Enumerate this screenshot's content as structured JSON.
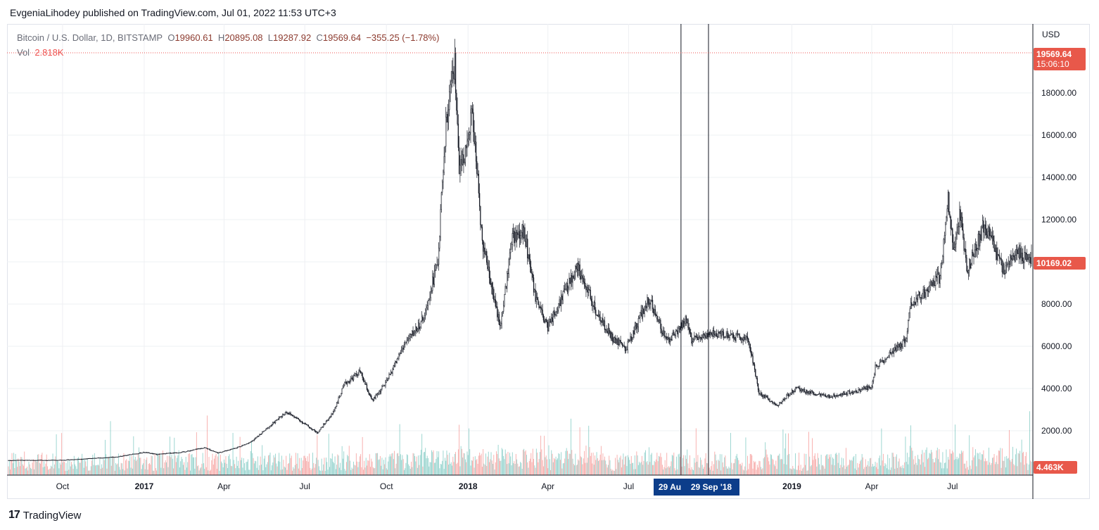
{
  "header": {
    "published": "EvgeniaLihodey published on TradingView.com, Jul 01, 2022 11:53 UTC+3"
  },
  "legend": {
    "symbol": "Bitcoin / U.S. Dollar, 1D, BITSTAMP",
    "open_label": "O",
    "open": "19960.61",
    "high_label": "H",
    "high": "20895.08",
    "low_label": "L",
    "low": "19287.92",
    "close_label": "C",
    "close": "19569.64",
    "change": "−355.25 (−1.78%)",
    "vol_label": "Vol",
    "vol_value": "2.818K"
  },
  "price_axis": {
    "currency": "USD",
    "last_price": "19569.64",
    "countdown": "15:06:10",
    "crosshair_price": "10169.02",
    "volume_tag": "4.463K",
    "tag_color": "#e8584a"
  },
  "time_axis": {
    "marker_a": "29 Au",
    "marker_b": "29 Sep '18",
    "marker_color": "#0c3d8a"
  },
  "footer": {
    "brand": "TradingView",
    "logo": "17"
  },
  "colors": {
    "up": "#26a69a",
    "down": "#ef5350",
    "candle": "#131722",
    "grid": "#eef0f3"
  },
  "chart_data": {
    "type": "candlestick",
    "symbol": "Bitcoin / U.S. Dollar",
    "interval": "1D",
    "exchange": "BITSTAMP",
    "ylim": [
      -100,
      20000
    ],
    "y_ticks": [
      2000,
      4000,
      6000,
      8000,
      10000,
      12000,
      14000,
      16000,
      18000
    ],
    "y_tick_labels": [
      "2000.00",
      "4000.00",
      "6000.00",
      "8000.00",
      "10000.00",
      "12000.00",
      "14000.00",
      "16000.00",
      "18000.00"
    ],
    "x_ticks": [
      {
        "label": "Oct",
        "date": "2016-10-01",
        "bold": false
      },
      {
        "label": "2017",
        "date": "2017-01-01",
        "bold": true
      },
      {
        "label": "Apr",
        "date": "2017-04-01",
        "bold": false
      },
      {
        "label": "Jul",
        "date": "2017-07-01",
        "bold": false
      },
      {
        "label": "Oct",
        "date": "2017-10-01",
        "bold": false
      },
      {
        "label": "2018",
        "date": "2018-01-01",
        "bold": true
      },
      {
        "label": "Apr",
        "date": "2018-04-01",
        "bold": false
      },
      {
        "label": "Jul",
        "date": "2018-07-01",
        "bold": false
      },
      {
        "label": "2019",
        "date": "2019-01-01",
        "bold": true
      },
      {
        "label": "Apr",
        "date": "2019-04-01",
        "bold": false
      },
      {
        "label": "Jul",
        "date": "2019-07-01",
        "bold": false
      }
    ],
    "x_range": [
      "2016-08-01",
      "2019-09-28"
    ],
    "vertical_markers": [
      "2018-08-29",
      "2018-09-29"
    ],
    "close_series": [
      [
        "2016-08-01",
        600
      ],
      [
        "2016-10-01",
        610
      ],
      [
        "2016-12-01",
        760
      ],
      [
        "2017-01-01",
        980
      ],
      [
        "2017-01-15",
        880
      ],
      [
        "2017-02-15",
        1000
      ],
      [
        "2017-03-10",
        1200
      ],
      [
        "2017-03-25",
        950
      ],
      [
        "2017-04-15",
        1200
      ],
      [
        "2017-05-01",
        1450
      ],
      [
        "2017-05-25",
        2300
      ],
      [
        "2017-06-10",
        2900
      ],
      [
        "2017-06-25",
        2500
      ],
      [
        "2017-07-15",
        1900
      ],
      [
        "2017-08-01",
        2800
      ],
      [
        "2017-08-15",
        4200
      ],
      [
        "2017-09-01",
        4800
      ],
      [
        "2017-09-15",
        3400
      ],
      [
        "2017-10-01",
        4300
      ],
      [
        "2017-10-20",
        6000
      ],
      [
        "2017-11-10",
        7200
      ],
      [
        "2017-11-28",
        10000
      ],
      [
        "2017-12-07",
        16500
      ],
      [
        "2017-12-17",
        19300
      ],
      [
        "2017-12-22",
        14000
      ],
      [
        "2018-01-06",
        17000
      ],
      [
        "2018-01-17",
        11000
      ],
      [
        "2018-02-06",
        6900
      ],
      [
        "2018-02-20",
        11100
      ],
      [
        "2018-03-05",
        11500
      ],
      [
        "2018-03-18",
        8200
      ],
      [
        "2018-04-01",
        6900
      ],
      [
        "2018-04-12",
        7900
      ],
      [
        "2018-05-05",
        9800
      ],
      [
        "2018-05-28",
        7400
      ],
      [
        "2018-06-13",
        6400
      ],
      [
        "2018-06-28",
        5900
      ],
      [
        "2018-07-24",
        8300
      ],
      [
        "2018-08-13",
        6200
      ],
      [
        "2018-09-05",
        7300
      ],
      [
        "2018-09-10",
        6300
      ],
      [
        "2018-10-01",
        6600
      ],
      [
        "2018-11-13",
        6350
      ],
      [
        "2018-11-25",
        3800
      ],
      [
        "2018-12-15",
        3200
      ],
      [
        "2019-01-05",
        4000
      ],
      [
        "2019-02-10",
        3600
      ],
      [
        "2019-03-15",
        3900
      ],
      [
        "2019-04-01",
        4100
      ],
      [
        "2019-04-05",
        5000
      ],
      [
        "2019-05-10",
        6300
      ],
      [
        "2019-05-14",
        8000
      ],
      [
        "2019-06-01",
        8600
      ],
      [
        "2019-06-17",
        9300
      ],
      [
        "2019-06-26",
        12900
      ],
      [
        "2019-07-02",
        10600
      ],
      [
        "2019-07-10",
        12300
      ],
      [
        "2019-07-17",
        9500
      ],
      [
        "2019-08-06",
        11800
      ],
      [
        "2019-08-29",
        9500
      ],
      [
        "2019-09-08",
        10400
      ],
      [
        "2019-09-28",
        10169
      ]
    ]
  }
}
